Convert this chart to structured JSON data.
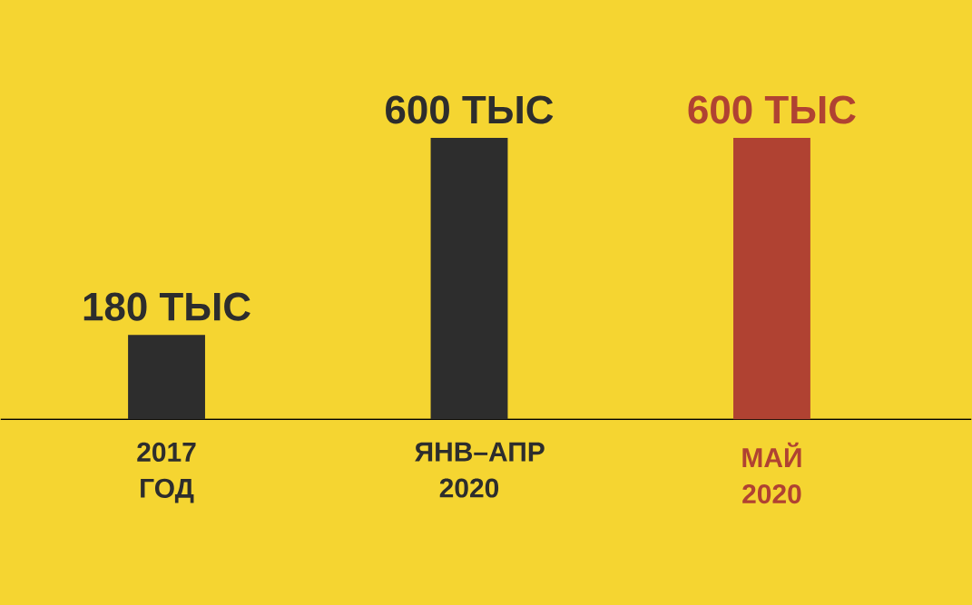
{
  "chart_data": {
    "type": "bar",
    "categories": [
      "2017 ГОД",
      "ЯНВ–АПР 2020",
      "МАЙ 2020"
    ],
    "values": [
      180,
      600,
      600
    ],
    "value_labels": [
      "180 ТЫС",
      "600 ТЫС",
      "600 ТЫС"
    ],
    "colors": [
      "#2d2d2d",
      "#2d2d2d",
      "#b04232"
    ]
  }
}
